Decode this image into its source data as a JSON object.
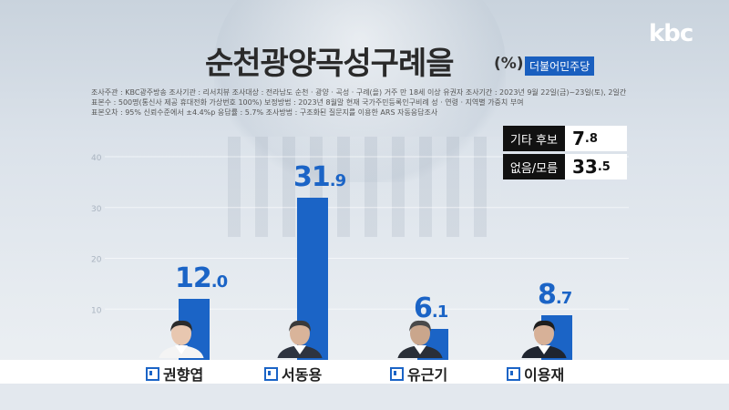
{
  "logo": "kbc",
  "title": "순천광양곡성구례을",
  "unit": "(%)",
  "party_badge": "더불어민주당",
  "info_lines": [
    "조사주관 : KBC광주방송    조사기관 : 리서치뷰    조사대상 : 전라남도 순천 · 광양 · 곡성 · 구례(을) 거주 만 18세 이상 유권자    조사기간 : 2023년 9월 22일(금)~23일(토), 2일간",
    "표본수 : 500명(통신사 제공 휴대전화 가상번호 100%)    보정방법 : 2023년 8월말 현재 국가주민등록인구비례 성 · 연령 · 지역별 가중치 부여",
    "표본오차 : 95% 신뢰수준에서 ±4.4%p    응답률 : 5.7%    조사방법 : 구조화된 질문지를 이용한 ARS 자동응답조사"
  ],
  "side_items": [
    {
      "label": "기타 후보",
      "int": "7",
      "dec": ".8"
    },
    {
      "label": "없음/모름",
      "int": "33",
      "dec": ".5"
    }
  ],
  "chart_data": {
    "type": "bar",
    "categories": [
      "권향엽",
      "서동용",
      "유근기",
      "이용재"
    ],
    "values": [
      12.0,
      31.9,
      6.1,
      8.7
    ],
    "value_labels": [
      {
        "int": "12",
        "dec": ".0"
      },
      {
        "int": "31",
        "dec": ".9"
      },
      {
        "int": "6",
        "dec": ".1"
      },
      {
        "int": "8",
        "dec": ".7"
      }
    ],
    "ylim": [
      0,
      40
    ],
    "yticks": [
      10,
      20,
      30,
      40
    ],
    "grid": true,
    "bar_color": "#1b64c6"
  }
}
